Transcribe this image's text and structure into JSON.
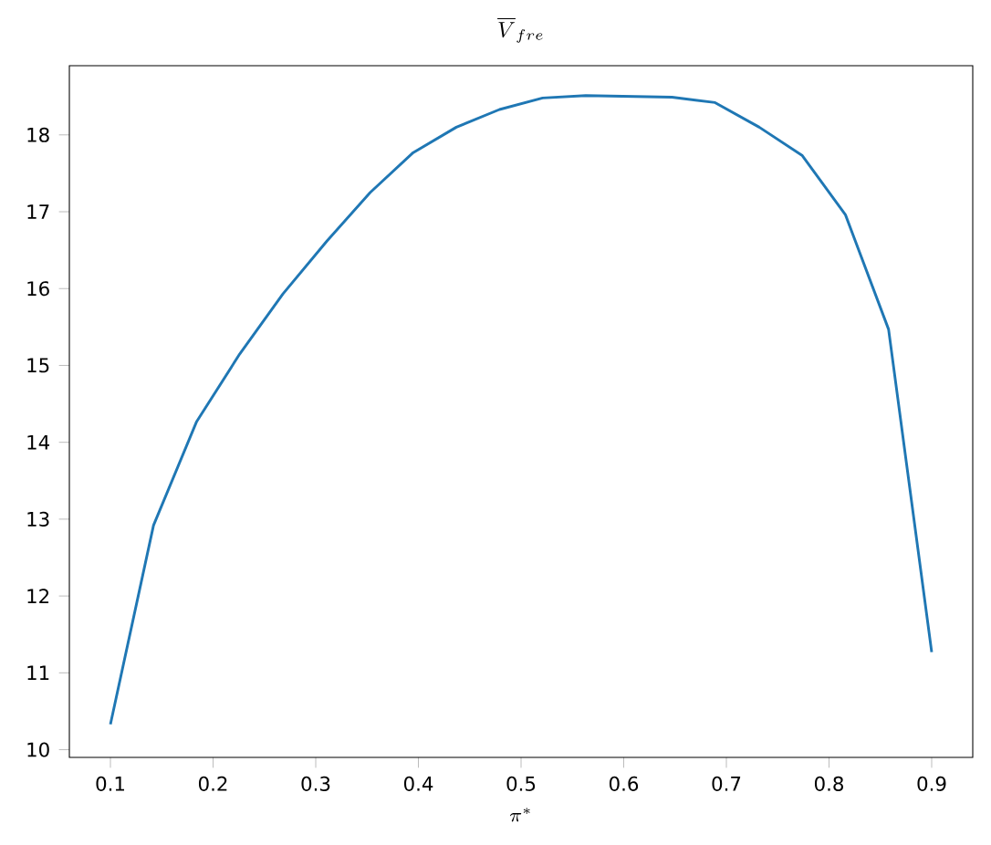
{
  "chart_data": {
    "type": "line",
    "title": "\\overline{V}_{fre}",
    "xlabel": "\\pi^*",
    "x": [
      0.1,
      0.142,
      0.184,
      0.226,
      0.268,
      0.311,
      0.353,
      0.395,
      0.437,
      0.479,
      0.521,
      0.563,
      0.605,
      0.647,
      0.689,
      0.732,
      0.774,
      0.816,
      0.858,
      0.9
    ],
    "series": [
      {
        "color": "#1f77b4",
        "values": [
          10.33,
          12.92,
          14.27,
          15.15,
          15.93,
          16.62,
          17.25,
          17.77,
          18.1,
          18.33,
          18.48,
          18.51,
          18.5,
          18.49,
          18.42,
          18.1,
          17.73,
          16.96,
          15.47,
          11.27
        ]
      }
    ],
    "xlim": [
      0.06,
      0.94
    ],
    "ylim": [
      9.9,
      18.9
    ],
    "xticks": [
      {
        "value": 0.1,
        "label": "0.1"
      },
      {
        "value": 0.2,
        "label": "0.2"
      },
      {
        "value": 0.3,
        "label": "0.3"
      },
      {
        "value": 0.4,
        "label": "0.4"
      },
      {
        "value": 0.5,
        "label": "0.5"
      },
      {
        "value": 0.6,
        "label": "0.6"
      },
      {
        "value": 0.7,
        "label": "0.7"
      },
      {
        "value": 0.8,
        "label": "0.8"
      },
      {
        "value": 0.9,
        "label": "0.9"
      }
    ],
    "yticks": [
      10,
      11,
      12,
      13,
      14,
      15,
      16,
      17,
      18
    ],
    "grid": false,
    "marker": "none",
    "line_style": "solid"
  }
}
